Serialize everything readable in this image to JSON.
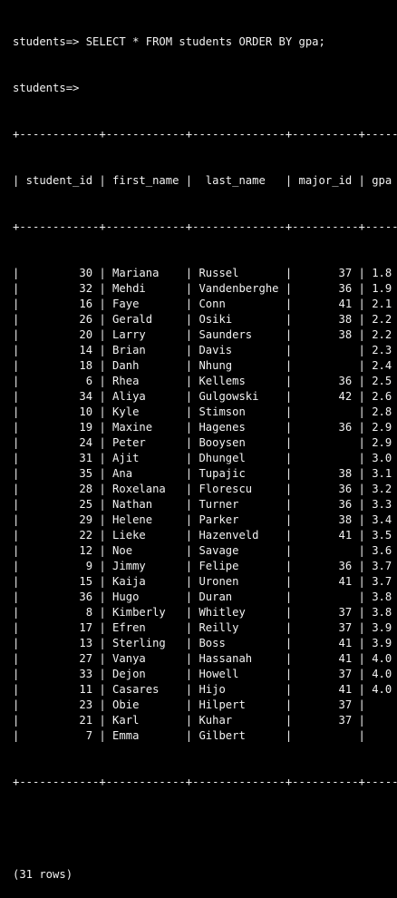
{
  "terminal": {
    "prompt_query": "students=> SELECT * FROM students ORDER BY gpa;",
    "prompt_idle": "students=>",
    "footer": "(31 rows)"
  },
  "table": {
    "columns": [
      "student_id",
      "first_name",
      "last_name",
      "major_id",
      "gpa"
    ],
    "rows": [
      [
        "30",
        "Mariana",
        "Russel",
        "37",
        "1.8"
      ],
      [
        "32",
        "Mehdi",
        "Vandenberghe",
        "36",
        "1.9"
      ],
      [
        "16",
        "Faye",
        "Conn",
        "41",
        "2.1"
      ],
      [
        "26",
        "Gerald",
        "Osiki",
        "38",
        "2.2"
      ],
      [
        "20",
        "Larry",
        "Saunders",
        "38",
        "2.2"
      ],
      [
        "14",
        "Brian",
        "Davis",
        "",
        "2.3"
      ],
      [
        "18",
        "Danh",
        "Nhung",
        "",
        "2.4"
      ],
      [
        "6",
        "Rhea",
        "Kellems",
        "36",
        "2.5"
      ],
      [
        "34",
        "Aliya",
        "Gulgowski",
        "42",
        "2.6"
      ],
      [
        "10",
        "Kyle",
        "Stimson",
        "",
        "2.8"
      ],
      [
        "19",
        "Maxine",
        "Hagenes",
        "36",
        "2.9"
      ],
      [
        "24",
        "Peter",
        "Booysen",
        "",
        "2.9"
      ],
      [
        "31",
        "Ajit",
        "Dhungel",
        "",
        "3.0"
      ],
      [
        "35",
        "Ana",
        "Tupajic",
        "38",
        "3.1"
      ],
      [
        "28",
        "Roxelana",
        "Florescu",
        "36",
        "3.2"
      ],
      [
        "25",
        "Nathan",
        "Turner",
        "36",
        "3.3"
      ],
      [
        "29",
        "Helene",
        "Parker",
        "38",
        "3.4"
      ],
      [
        "22",
        "Lieke",
        "Hazenveld",
        "41",
        "3.5"
      ],
      [
        "12",
        "Noe",
        "Savage",
        "",
        "3.6"
      ],
      [
        "9",
        "Jimmy",
        "Felipe",
        "36",
        "3.7"
      ],
      [
        "15",
        "Kaija",
        "Uronen",
        "41",
        "3.7"
      ],
      [
        "36",
        "Hugo",
        "Duran",
        "",
        "3.8"
      ],
      [
        "8",
        "Kimberly",
        "Whitley",
        "37",
        "3.8"
      ],
      [
        "17",
        "Efren",
        "Reilly",
        "37",
        "3.9"
      ],
      [
        "13",
        "Sterling",
        "Boss",
        "41",
        "3.9"
      ],
      [
        "27",
        "Vanya",
        "Hassanah",
        "41",
        "4.0"
      ],
      [
        "33",
        "Dejon",
        "Howell",
        "37",
        "4.0"
      ],
      [
        "11",
        "Casares",
        "Hijo",
        "41",
        "4.0"
      ],
      [
        "23",
        "Obie",
        "Hilpert",
        "37",
        ""
      ],
      [
        "21",
        "Karl",
        "Kuhar",
        "37",
        ""
      ],
      [
        "7",
        "Emma",
        "Gilbert",
        "",
        ""
      ]
    ]
  }
}
